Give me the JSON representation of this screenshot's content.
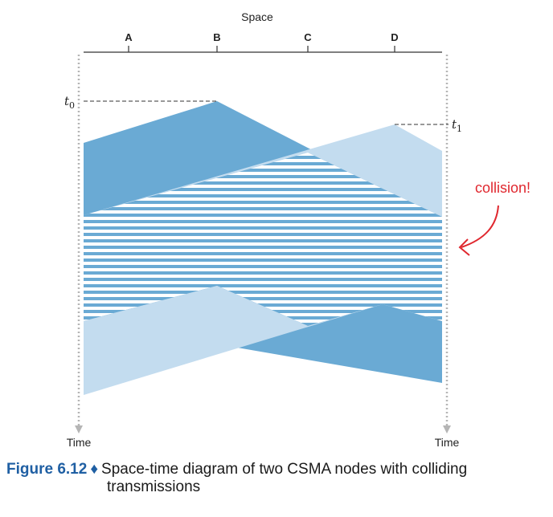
{
  "axis": {
    "space_label": "Space",
    "time_label": "Time",
    "nodes": [
      "A",
      "B",
      "C",
      "D"
    ]
  },
  "annotations": {
    "t0": "t",
    "t0_sub": "0",
    "t1": "t",
    "t1_sub": "1",
    "collision": "collision!"
  },
  "caption": {
    "figure": "Figure 6.12",
    "bullet": "♦",
    "text_line1": "Space-time diagram of two CSMA nodes with colliding",
    "text_line2": "transmissions"
  },
  "colors": {
    "dark_blue": "#6aaad4",
    "light_blue": "#c3dcef",
    "stripe": "#ffffff",
    "axis": "#333333",
    "dotted": "#b5b5b5",
    "collision_red": "#e0282f",
    "caption_blue": "#1f5fa3"
  }
}
